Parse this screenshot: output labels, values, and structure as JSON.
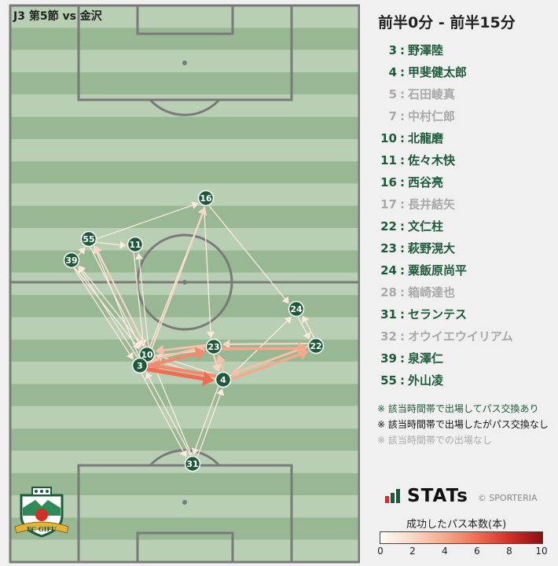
{
  "header": {
    "match_title": "J3 第5節 vs 金沢",
    "period_title": "前半0分 - 前半15分"
  },
  "roster": [
    {
      "number": "3",
      "name": "野澤陸",
      "status": "passed"
    },
    {
      "number": "4",
      "name": "甲斐健太郎",
      "status": "passed"
    },
    {
      "number": "5",
      "name": "石田崚真",
      "status": "not_played"
    },
    {
      "number": "7",
      "name": "中村仁郎",
      "status": "not_played"
    },
    {
      "number": "10",
      "name": "北龍磨",
      "status": "passed"
    },
    {
      "number": "11",
      "name": "佐々木快",
      "status": "passed"
    },
    {
      "number": "16",
      "name": "西谷亮",
      "status": "passed"
    },
    {
      "number": "17",
      "name": "長井結矢",
      "status": "not_played"
    },
    {
      "number": "22",
      "name": "文仁柱",
      "status": "passed"
    },
    {
      "number": "23",
      "name": "萩野滉大",
      "status": "passed"
    },
    {
      "number": "24",
      "name": "粟飯原尚平",
      "status": "passed"
    },
    {
      "number": "28",
      "name": "箱崎達也",
      "status": "not_played"
    },
    {
      "number": "31",
      "name": "セランテス",
      "status": "passed"
    },
    {
      "number": "32",
      "name": "オウイエウイリアム",
      "status": "not_played"
    },
    {
      "number": "39",
      "name": "泉澤仁",
      "status": "passed"
    },
    {
      "number": "55",
      "name": "外山凌",
      "status": "passed"
    }
  ],
  "pitch_players": [
    {
      "number": "16"
    },
    {
      "number": "55"
    },
    {
      "number": "11"
    },
    {
      "number": "39"
    },
    {
      "number": "24"
    },
    {
      "number": "22"
    },
    {
      "number": "23"
    },
    {
      "number": "10"
    },
    {
      "number": "3"
    },
    {
      "number": "4"
    },
    {
      "number": "31"
    }
  ],
  "passes": [
    {
      "from": "3",
      "to": "4",
      "count": 6
    },
    {
      "from": "4",
      "to": "3",
      "count": 5
    },
    {
      "from": "3",
      "to": "23",
      "count": 5
    },
    {
      "from": "23",
      "to": "3",
      "count": 3
    },
    {
      "from": "23",
      "to": "10",
      "count": 3
    },
    {
      "from": "10",
      "to": "23",
      "count": 2
    },
    {
      "from": "23",
      "to": "22",
      "count": 4
    },
    {
      "from": "22",
      "to": "23",
      "count": 2
    },
    {
      "from": "4",
      "to": "22",
      "count": 4
    },
    {
      "from": "22",
      "to": "4",
      "count": 3
    },
    {
      "from": "4",
      "to": "23",
      "count": 3
    },
    {
      "from": "23",
      "to": "4",
      "count": 2
    },
    {
      "from": "10",
      "to": "16",
      "count": 2
    },
    {
      "from": "3",
      "to": "16",
      "count": 1
    },
    {
      "from": "10",
      "to": "55",
      "count": 2
    },
    {
      "from": "55",
      "to": "10",
      "count": 1
    },
    {
      "from": "10",
      "to": "39",
      "count": 1
    },
    {
      "from": "39",
      "to": "10",
      "count": 1
    },
    {
      "from": "10",
      "to": "11",
      "count": 1
    },
    {
      "from": "11",
      "to": "10",
      "count": 1
    },
    {
      "from": "55",
      "to": "16",
      "count": 1
    },
    {
      "from": "55",
      "to": "11",
      "count": 1
    },
    {
      "from": "39",
      "to": "55",
      "count": 1
    },
    {
      "from": "39",
      "to": "3",
      "count": 1
    },
    {
      "from": "3",
      "to": "39",
      "count": 1
    },
    {
      "from": "3",
      "to": "55",
      "count": 1
    },
    {
      "from": "16",
      "to": "24",
      "count": 1
    },
    {
      "from": "24",
      "to": "22",
      "count": 1
    },
    {
      "from": "22",
      "to": "24",
      "count": 1
    },
    {
      "from": "4",
      "to": "24",
      "count": 1
    },
    {
      "from": "31",
      "to": "4",
      "count": 1
    },
    {
      "from": "4",
      "to": "31",
      "count": 1
    },
    {
      "from": "31",
      "to": "3",
      "count": 1
    },
    {
      "from": "3",
      "to": "31",
      "count": 1
    },
    {
      "from": "31",
      "to": "10",
      "count": 1
    },
    {
      "from": "10",
      "to": "4",
      "count": 2
    },
    {
      "from": "4",
      "to": "10",
      "count": 1
    },
    {
      "from": "3",
      "to": "10",
      "count": 2
    },
    {
      "from": "16",
      "to": "23",
      "count": 1
    }
  ],
  "legend_notes": [
    {
      "text": "※ 該当時間帯で出場してパス交換あり"
    },
    {
      "text": "※ 該当時間帯で出場したがパス交換なし"
    },
    {
      "text": "※ 該当時間帯での出場なし"
    }
  ],
  "brand": {
    "stats_label": "STATs",
    "credit": "© SPORTERIA"
  },
  "club_logo": {
    "text": "FC GIFU"
  },
  "colorbar": {
    "title": "成功したパス本数(本)",
    "ticks": [
      "0",
      "2",
      "4",
      "6",
      "8",
      "10"
    ],
    "min": 0,
    "max": 10
  },
  "colors": {
    "pitch_light": "#b8cfb4",
    "pitch_dark": "#97b893",
    "pitch_lines": "#7a7a7a",
    "player_node": "#1d5a3a",
    "player_border": "#ffffff",
    "active_text": "#1d5a3a",
    "inactive_text": "#a9a9a9",
    "note_active": "#1d5a3a",
    "note_nopass": "#111111",
    "note_absent": "#a9a9a9",
    "panel_bg": "#f0f0f0"
  }
}
